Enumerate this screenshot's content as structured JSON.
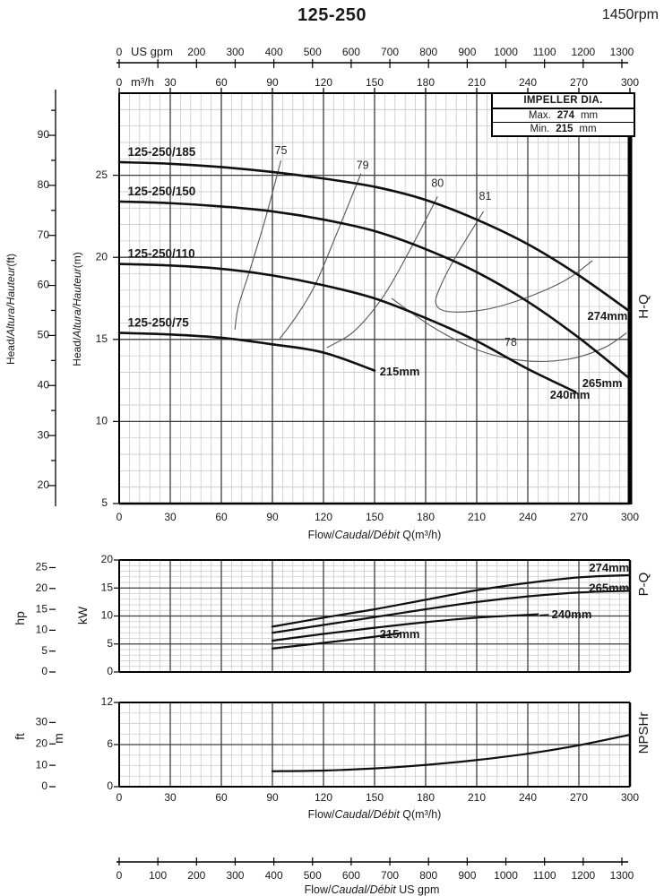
{
  "header": {
    "title": "125-250",
    "rpm": "1450rpm"
  },
  "impeller_box": {
    "title": "IMPELLER DIA.",
    "rows": [
      {
        "label": "Max.",
        "value": "274",
        "unit": "mm"
      },
      {
        "label": "Min.",
        "value": "215",
        "unit": "mm"
      }
    ]
  },
  "side_labels": {
    "hq": "H-Q",
    "pq": "P-Q",
    "npsh": "NPSHr"
  },
  "axis_text": {
    "flow_prefix": "Flow/",
    "flow_italic": "Caudal/Débit",
    "flow_q_suffix": " Q(m³/h)",
    "flow_gpm_suffix": "  US gpm",
    "head_prefix": "Head/",
    "head_italic": "Altura/Hauteur",
    "head_ft_suffix": "(ft)",
    "head_m_suffix": "(m)",
    "us_gpm": "US gpm",
    "m3h": "m³/h",
    "hp": "hp",
    "kw": "kW",
    "ft": "ft",
    "m": "m"
  },
  "chart_data": {
    "type": "line",
    "flow_axis": {
      "unit": "m³/h",
      "range": [
        0,
        300
      ],
      "major": 30,
      "minor": 6,
      "ticks": [
        0,
        30,
        60,
        90,
        120,
        150,
        180,
        210,
        240,
        270,
        300
      ]
    },
    "gpm_axis": {
      "unit": "US gpm",
      "ticks": [
        0,
        100,
        200,
        300,
        400,
        500,
        600,
        700,
        800,
        900,
        1000,
        1100,
        1200,
        1300
      ],
      "skip_top_label": 100
    },
    "hq": {
      "y_unit": "m",
      "range": [
        5,
        30
      ],
      "ticks": [
        5,
        10,
        15,
        20,
        25
      ],
      "minor": 1,
      "ft_label_ticks": [
        20,
        30,
        40,
        50,
        60,
        70,
        80,
        90
      ],
      "series": [
        {
          "model": "125-250/185",
          "diameter": "274mm",
          "points": [
            [
              0,
              25.8
            ],
            [
              30,
              25.7
            ],
            [
              60,
              25.5
            ],
            [
              90,
              25.2
            ],
            [
              120,
              24.8
            ],
            [
              150,
              24.3
            ],
            [
              180,
              23.5
            ],
            [
              210,
              22.3
            ],
            [
              240,
              20.8
            ],
            [
              270,
              18.9
            ],
            [
              300,
              16.7
            ]
          ],
          "dia_label_at": [
            275,
            16.2
          ]
        },
        {
          "model": "125-250/150",
          "diameter": "265mm",
          "points": [
            [
              0,
              23.4
            ],
            [
              30,
              23.3
            ],
            [
              60,
              23.1
            ],
            [
              90,
              22.8
            ],
            [
              120,
              22.3
            ],
            [
              150,
              21.6
            ],
            [
              180,
              20.5
            ],
            [
              210,
              19.1
            ],
            [
              240,
              17.3
            ],
            [
              270,
              15.1
            ],
            [
              300,
              12.6
            ]
          ],
          "dia_label_at": [
            272,
            12.1
          ]
        },
        {
          "model": "125-250/110",
          "diameter": "240mm",
          "points": [
            [
              0,
              19.6
            ],
            [
              30,
              19.5
            ],
            [
              60,
              19.3
            ],
            [
              90,
              18.9
            ],
            [
              120,
              18.3
            ],
            [
              150,
              17.5
            ],
            [
              180,
              16.3
            ],
            [
              210,
              14.9
            ],
            [
              240,
              13.2
            ],
            [
              268,
              11.8
            ]
          ],
          "dia_label_at": [
            253,
            11.4
          ]
        },
        {
          "model": "125-250/75",
          "diameter": "215mm",
          "points": [
            [
              0,
              15.4
            ],
            [
              30,
              15.3
            ],
            [
              60,
              15.1
            ],
            [
              90,
              14.7
            ],
            [
              120,
              14.2
            ],
            [
              150,
              13.1
            ]
          ],
          "dia_label_at": [
            153,
            12.8
          ]
        }
      ],
      "efficiency": [
        {
          "label": "75",
          "label_at": [
            95,
            26.3
          ],
          "points": [
            [
              95,
              25.9
            ],
            [
              86,
              22.4
            ],
            [
              77,
              19.3
            ],
            [
              70,
              17.0
            ],
            [
              68,
              15.6
            ]
          ]
        },
        {
          "label": "79",
          "label_at": [
            143,
            25.4
          ],
          "points": [
            [
              142,
              25.1
            ],
            [
              128,
              21.5
            ],
            [
              115,
              18.3
            ],
            [
              104,
              16.4
            ],
            [
              94,
              15.0
            ]
          ]
        },
        {
          "label": "80",
          "label_at": [
            187,
            24.3
          ],
          "points": [
            [
              187,
              23.7
            ],
            [
              170,
              20.3
            ],
            [
              155,
              17.6
            ],
            [
              138,
              15.5
            ],
            [
              122,
              14.5
            ]
          ]
        },
        {
          "label": "81",
          "label_at": [
            215,
            23.5
          ],
          "points": [
            [
              214,
              22.8
            ],
            [
              198,
              20.1
            ],
            [
              189,
              18.3
            ],
            [
              186,
              17.2
            ],
            [
              193,
              16.7
            ],
            [
              214,
              16.8
            ],
            [
              238,
              17.5
            ],
            [
              262,
              18.6
            ],
            [
              278,
              19.8
            ]
          ]
        },
        {
          "label": "78",
          "label_at": [
            230,
            14.6
          ],
          "points": [
            [
              160,
              17.5
            ],
            [
              185,
              15.7
            ],
            [
              212,
              14.3
            ],
            [
              238,
              13.7
            ],
            [
              264,
              13.8
            ],
            [
              285,
              14.5
            ],
            [
              298,
              15.4
            ]
          ]
        }
      ]
    },
    "pq": {
      "y_unit": "kW",
      "range": [
        0,
        20
      ],
      "ticks": [
        0,
        5,
        10,
        15,
        20
      ],
      "minor": 1,
      "hp_label_ticks": [
        0,
        5,
        10,
        15,
        20,
        25
      ],
      "series": [
        {
          "diameter": "274mm",
          "points": [
            [
              90,
              8.1
            ],
            [
              120,
              9.7
            ],
            [
              150,
              11.2
            ],
            [
              180,
              12.9
            ],
            [
              210,
              14.6
            ],
            [
              240,
              15.9
            ],
            [
              270,
              16.9
            ],
            [
              300,
              17.3
            ]
          ],
          "dia_label_at": [
            276,
            17.9
          ]
        },
        {
          "diameter": "265mm",
          "points": [
            [
              90,
              7.0
            ],
            [
              120,
              8.4
            ],
            [
              150,
              9.8
            ],
            [
              180,
              11.2
            ],
            [
              210,
              12.5
            ],
            [
              240,
              13.5
            ],
            [
              270,
              14.2
            ],
            [
              300,
              14.5
            ]
          ],
          "dia_label_at": [
            276,
            14.3
          ]
        },
        {
          "diameter": "240mm",
          "points": [
            [
              90,
              5.6
            ],
            [
              120,
              6.8
            ],
            [
              150,
              7.9
            ],
            [
              180,
              8.9
            ],
            [
              210,
              9.7
            ],
            [
              246,
              10.3
            ]
          ],
          "dia_label_at": [
            254,
            9.6
          ],
          "leader": true
        },
        {
          "diameter": "215mm",
          "points": [
            [
              90,
              4.2
            ],
            [
              120,
              5.2
            ],
            [
              150,
              6.3
            ],
            [
              165,
              6.9
            ]
          ],
          "dia_label_at": [
            153,
            6.1
          ]
        }
      ]
    },
    "npsh": {
      "y_unit": "m",
      "range": [
        0,
        12
      ],
      "ticks": [
        0,
        6,
        12
      ],
      "minor": 1.5,
      "ft_label_ticks": [
        0,
        10,
        20,
        30
      ],
      "points": [
        [
          90,
          2.2
        ],
        [
          120,
          2.3
        ],
        [
          150,
          2.6
        ],
        [
          180,
          3.1
        ],
        [
          210,
          3.8
        ],
        [
          240,
          4.7
        ],
        [
          270,
          5.9
        ],
        [
          300,
          7.4
        ]
      ]
    }
  }
}
